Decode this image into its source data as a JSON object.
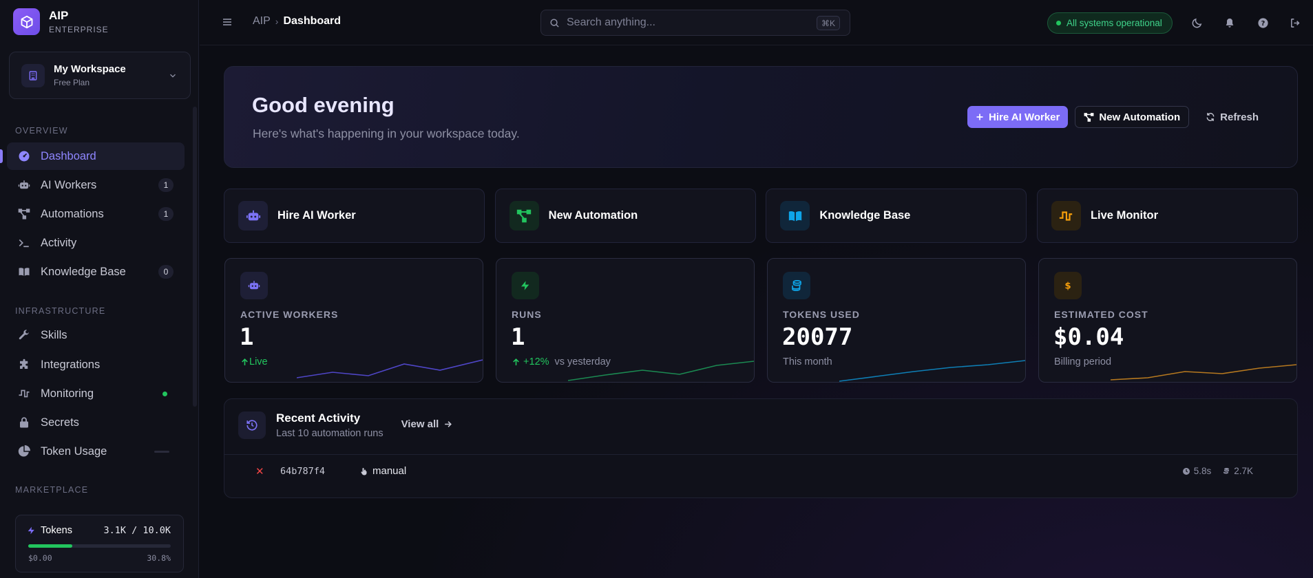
{
  "brand": {
    "name": "AIP",
    "tier": "ENTERPRISE",
    "logo_icon": "box-icon"
  },
  "workspace": {
    "name": "My Workspace",
    "plan": "Free Plan"
  },
  "sidebar": {
    "sections": [
      {
        "label": "OVERVIEW"
      },
      {
        "label": "INFRASTRUCTURE"
      },
      {
        "label": "MARKETPLACE"
      }
    ],
    "items": [
      {
        "label": "Dashboard",
        "icon": "gauge-icon",
        "active": true
      },
      {
        "label": "AI Workers",
        "icon": "robot-icon",
        "badge": "1"
      },
      {
        "label": "Automations",
        "icon": "workflow-icon",
        "badge": "1"
      },
      {
        "label": "Activity",
        "icon": "terminal-icon"
      },
      {
        "label": "Knowledge Base",
        "icon": "book-icon",
        "badge": "0"
      },
      {
        "label": "Skills",
        "icon": "wrench-icon"
      },
      {
        "label": "Integrations",
        "icon": "puzzle-icon"
      },
      {
        "label": "Monitoring",
        "icon": "pulse-icon",
        "status": "online"
      },
      {
        "label": "Secrets",
        "icon": "lock-icon"
      },
      {
        "label": "Token Usage",
        "icon": "pie-chart-icon"
      }
    ]
  },
  "tokens": {
    "label": "Tokens",
    "usage": "3.1K / 10.0K",
    "cost": "$0.00",
    "percent": "30.8%",
    "fill_fraction": 0.308
  },
  "header": {
    "breadcrumb": [
      "AIP",
      "Dashboard"
    ],
    "search_placeholder": "Search anything...",
    "search_shortcut": "⌘K",
    "status": "All systems operational"
  },
  "hero": {
    "title": "Good evening",
    "subtitle": "Here's what's happening in your workspace today.",
    "actions": {
      "hire": "Hire AI Worker",
      "automation": "New Automation",
      "refresh": "Refresh"
    }
  },
  "quick_actions": [
    {
      "label": "Hire AI Worker",
      "icon": "robot-icon"
    },
    {
      "label": "New Automation",
      "icon": "workflow-icon"
    },
    {
      "label": "Knowledge Base",
      "icon": "book-icon"
    },
    {
      "label": "Live Monitor",
      "icon": "pulse-icon"
    }
  ],
  "stats": [
    {
      "label": "ACTIVE WORKERS",
      "value": "1",
      "trend": "Live",
      "color": "#6366f1"
    },
    {
      "label": "RUNS",
      "value": "1",
      "trend": "+12%",
      "note": "vs yesterday",
      "color": "#22c55e"
    },
    {
      "label": "TOKENS USED",
      "value": "20077",
      "note": "This month",
      "color": "#0ea5e9"
    },
    {
      "label": "ESTIMATED COST",
      "value": "$0.04",
      "note": "Billing period",
      "color": "#f59e0b"
    }
  ],
  "activity": {
    "title": "Recent Activity",
    "subtitle": "Last 10 automation runs",
    "view_all": "View all",
    "rows": [
      {
        "status": "failed",
        "status_symbol": "✕",
        "id": "64b787f4",
        "trigger": "manual",
        "duration": "5.8s",
        "tokens": "2.7K"
      }
    ]
  },
  "colors": {
    "accent": "#7c6cf6",
    "success": "#22c55e",
    "danger": "#ef4444"
  }
}
